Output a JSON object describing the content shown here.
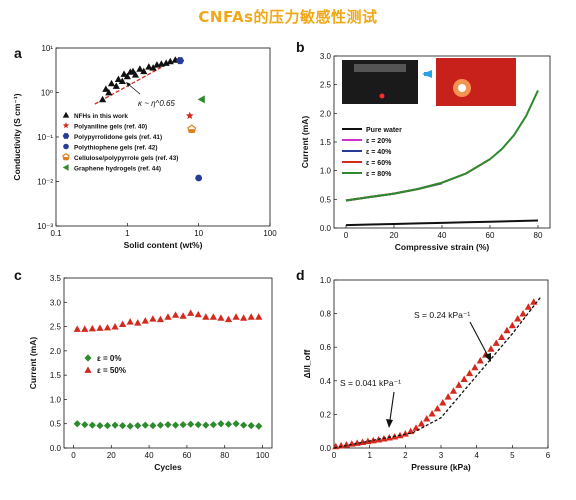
{
  "page_title": "CNFAs的压力敏感性测试",
  "chart_data": [
    {
      "panel": "a",
      "type": "scatter",
      "xlabel": "Solid content (wt%)",
      "ylabel": "Conductivity (S cm⁻¹)",
      "xscale": "log",
      "yscale": "log",
      "xlim": [
        0.1,
        100
      ],
      "ylim": [
        0.001,
        10
      ],
      "x_ticks": [
        0.1,
        1,
        10,
        100
      ],
      "x_tick_labels": [
        "0.1",
        "1",
        "10",
        "100"
      ],
      "y_ticks": [
        0.001,
        0.01,
        0.1,
        1,
        10
      ],
      "y_tick_labels": [
        "10⁻³",
        "10⁻²",
        "10⁻¹",
        "10⁰",
        "10¹"
      ],
      "grid": false,
      "legend": "bottom-left",
      "annotation": "κ ~ η^0.65",
      "series": [
        {
          "name": "NFHs in this work",
          "marker": "triangle-up",
          "color": "#111111",
          "points": [
            [
              0.45,
              0.7
            ],
            [
              0.5,
              1.2
            ],
            [
              0.55,
              1.0
            ],
            [
              0.6,
              1.6
            ],
            [
              0.7,
              1.4
            ],
            [
              0.75,
              2.0
            ],
            [
              0.85,
              1.8
            ],
            [
              0.9,
              2.6
            ],
            [
              1.0,
              2.3
            ],
            [
              1.1,
              2.9
            ],
            [
              1.2,
              3.0
            ],
            [
              1.3,
              2.5
            ],
            [
              1.5,
              3.4
            ],
            [
              1.7,
              3.0
            ],
            [
              2.0,
              3.8
            ],
            [
              2.3,
              3.6
            ],
            [
              2.6,
              4.2
            ],
            [
              3.0,
              4.4
            ],
            [
              3.5,
              4.6
            ],
            [
              4.0,
              5.0
            ],
            [
              4.7,
              5.4
            ]
          ]
        },
        {
          "name": "Polyaniline gels (ref. 40)",
          "marker": "star",
          "color": "#d42a1e",
          "points": [
            [
              7.5,
              0.3
            ]
          ]
        },
        {
          "name": "Polypyrrolidone gels (ref. 41)",
          "marker": "hexagon",
          "color": "#2a3a98",
          "points": [
            [
              5.5,
              5.2
            ]
          ]
        },
        {
          "name": "Polythiophene gels (ref. 42)",
          "marker": "circle",
          "color": "#2a3a98",
          "points": [
            [
              10,
              0.012
            ]
          ]
        },
        {
          "name": "Cellulose/polypyrrole gels (ref. 43)",
          "marker": "pentagon-half",
          "color": "#e08018",
          "points": [
            [
              8,
              0.15
            ]
          ]
        },
        {
          "name": "Graphene hydrogels (ref. 44)",
          "marker": "triangle-left",
          "color": "#2e8a2e",
          "points": [
            [
              11,
              0.7
            ]
          ]
        }
      ],
      "fit_line": {
        "x": [
          0.35,
          5.0
        ],
        "y": [
          0.55,
          5.8
        ],
        "style": "dashed",
        "color": "#d42a1e"
      }
    },
    {
      "panel": "b",
      "type": "line",
      "xlabel": "Compressive strain (%)",
      "ylabel": "Current (mA)",
      "xlim": [
        -5,
        85
      ],
      "ylim": [
        0,
        3.0
      ],
      "x_ticks": [
        0,
        20,
        40,
        60,
        80
      ],
      "y_ticks": [
        0.0,
        0.5,
        1.0,
        1.5,
        2.0,
        2.5,
        3.0
      ],
      "y_tick_labels": [
        "0.0",
        "0.5",
        "1.0",
        "1.5",
        "2.0",
        "2.5",
        "3.0"
      ],
      "legend": "left",
      "series": [
        {
          "name": "Pure water",
          "color": "#111111",
          "x": [
            0,
            10,
            20,
            30,
            40,
            50,
            60,
            70,
            80
          ],
          "y": [
            0.05,
            0.06,
            0.07,
            0.08,
            0.09,
            0.1,
            0.11,
            0.12,
            0.13
          ]
        },
        {
          "name": "ε = 20%",
          "color": "#cc33cc",
          "x": [
            0,
            5,
            10,
            15,
            20
          ],
          "y": [
            0.48,
            0.51,
            0.54,
            0.57,
            0.6
          ]
        },
        {
          "name": "ε = 40%",
          "color": "#2a3a98",
          "x": [
            0,
            10,
            20,
            30,
            40
          ],
          "y": [
            0.48,
            0.54,
            0.6,
            0.68,
            0.78
          ]
        },
        {
          "name": "ε = 60%",
          "color": "#d42a1e",
          "x": [
            0,
            10,
            20,
            30,
            40,
            50,
            60
          ],
          "y": [
            0.48,
            0.54,
            0.6,
            0.68,
            0.79,
            0.95,
            1.2
          ]
        },
        {
          "name": "ε = 80%",
          "color": "#2e8a2e",
          "x": [
            0,
            10,
            20,
            30,
            40,
            50,
            60,
            65,
            70,
            75,
            80
          ],
          "y": [
            0.48,
            0.54,
            0.6,
            0.68,
            0.79,
            0.95,
            1.2,
            1.38,
            1.62,
            1.95,
            2.4
          ]
        }
      ]
    },
    {
      "panel": "c",
      "type": "scatter",
      "xlabel": "Cycles",
      "ylabel": "Current (mA)",
      "xlim": [
        -5,
        105
      ],
      "ylim": [
        0,
        3.5
      ],
      "x_ticks": [
        0,
        20,
        40,
        60,
        80,
        100
      ],
      "y_ticks": [
        0.0,
        0.5,
        1.0,
        1.5,
        2.0,
        2.5,
        3.0,
        3.5
      ],
      "y_tick_labels": [
        "0.0",
        "0.5",
        "1.0",
        "1.5",
        "2.0",
        "2.5",
        "3.0",
        "3.5"
      ],
      "legend": "left",
      "series": [
        {
          "name": "ε = 0%",
          "marker": "diamond",
          "color": "#2e8a2e",
          "x": [
            2,
            6,
            10,
            14,
            18,
            22,
            26,
            30,
            34,
            38,
            42,
            46,
            50,
            54,
            58,
            62,
            66,
            70,
            74,
            78,
            82,
            86,
            90,
            94,
            98
          ],
          "y": [
            0.5,
            0.48,
            0.47,
            0.46,
            0.46,
            0.47,
            0.46,
            0.45,
            0.46,
            0.47,
            0.46,
            0.47,
            0.48,
            0.47,
            0.48,
            0.49,
            0.48,
            0.47,
            0.48,
            0.5,
            0.49,
            0.5,
            0.47,
            0.46,
            0.45
          ]
        },
        {
          "name": "ε = 50%",
          "marker": "triangle-up",
          "color": "#d42a1e",
          "x": [
            2,
            6,
            10,
            14,
            18,
            22,
            26,
            30,
            34,
            38,
            42,
            46,
            50,
            54,
            58,
            62,
            66,
            70,
            74,
            78,
            82,
            86,
            90,
            94,
            98
          ],
          "y": [
            2.45,
            2.45,
            2.46,
            2.47,
            2.48,
            2.5,
            2.55,
            2.6,
            2.58,
            2.62,
            2.66,
            2.65,
            2.7,
            2.74,
            2.72,
            2.78,
            2.75,
            2.7,
            2.7,
            2.68,
            2.65,
            2.7,
            2.68,
            2.7,
            2.7
          ]
        }
      ]
    },
    {
      "panel": "d",
      "type": "scatter",
      "xlabel": "Pressure (kPa)",
      "ylabel": "ΔI/I_off",
      "xlim": [
        0,
        6
      ],
      "ylim": [
        0,
        1.0
      ],
      "x_ticks": [
        0,
        1,
        2,
        3,
        4,
        5,
        6
      ],
      "y_ticks": [
        0.0,
        0.2,
        0.4,
        0.6,
        0.8,
        1.0
      ],
      "y_tick_labels": [
        "0.0",
        "0.2",
        "0.4",
        "0.6",
        "0.8",
        "1.0"
      ],
      "annotations": [
        "S = 0.24 kPa⁻¹",
        "S = 0.041 kPa⁻¹"
      ],
      "series": [
        {
          "name": "",
          "marker": "triangle-up",
          "color": "#d42a1e",
          "x": [
            0.05,
            0.2,
            0.35,
            0.5,
            0.65,
            0.8,
            0.95,
            1.1,
            1.25,
            1.4,
            1.55,
            1.7,
            1.85,
            2.0,
            2.15,
            2.3,
            2.45,
            2.6,
            2.75,
            2.9,
            3.05,
            3.2,
            3.35,
            3.5,
            3.65,
            3.8,
            3.95,
            4.1,
            4.25,
            4.4,
            4.55,
            4.7,
            4.85,
            5.0,
            5.15,
            5.3,
            5.45,
            5.6
          ],
          "y": [
            0.01,
            0.015,
            0.02,
            0.025,
            0.03,
            0.035,
            0.04,
            0.045,
            0.05,
            0.056,
            0.062,
            0.068,
            0.075,
            0.085,
            0.1,
            0.12,
            0.145,
            0.175,
            0.205,
            0.235,
            0.27,
            0.305,
            0.34,
            0.375,
            0.41,
            0.445,
            0.48,
            0.52,
            0.555,
            0.59,
            0.625,
            0.66,
            0.7,
            0.73,
            0.77,
            0.8,
            0.84,
            0.87
          ]
        }
      ],
      "fit_line": {
        "x": [
          0,
          1.2,
          2.2,
          3.0,
          4.0,
          5.0,
          5.8
        ],
        "y": [
          0.0,
          0.05,
          0.09,
          0.18,
          0.43,
          0.68,
          0.9
        ],
        "style": "dashed",
        "color": "#111111"
      }
    }
  ]
}
